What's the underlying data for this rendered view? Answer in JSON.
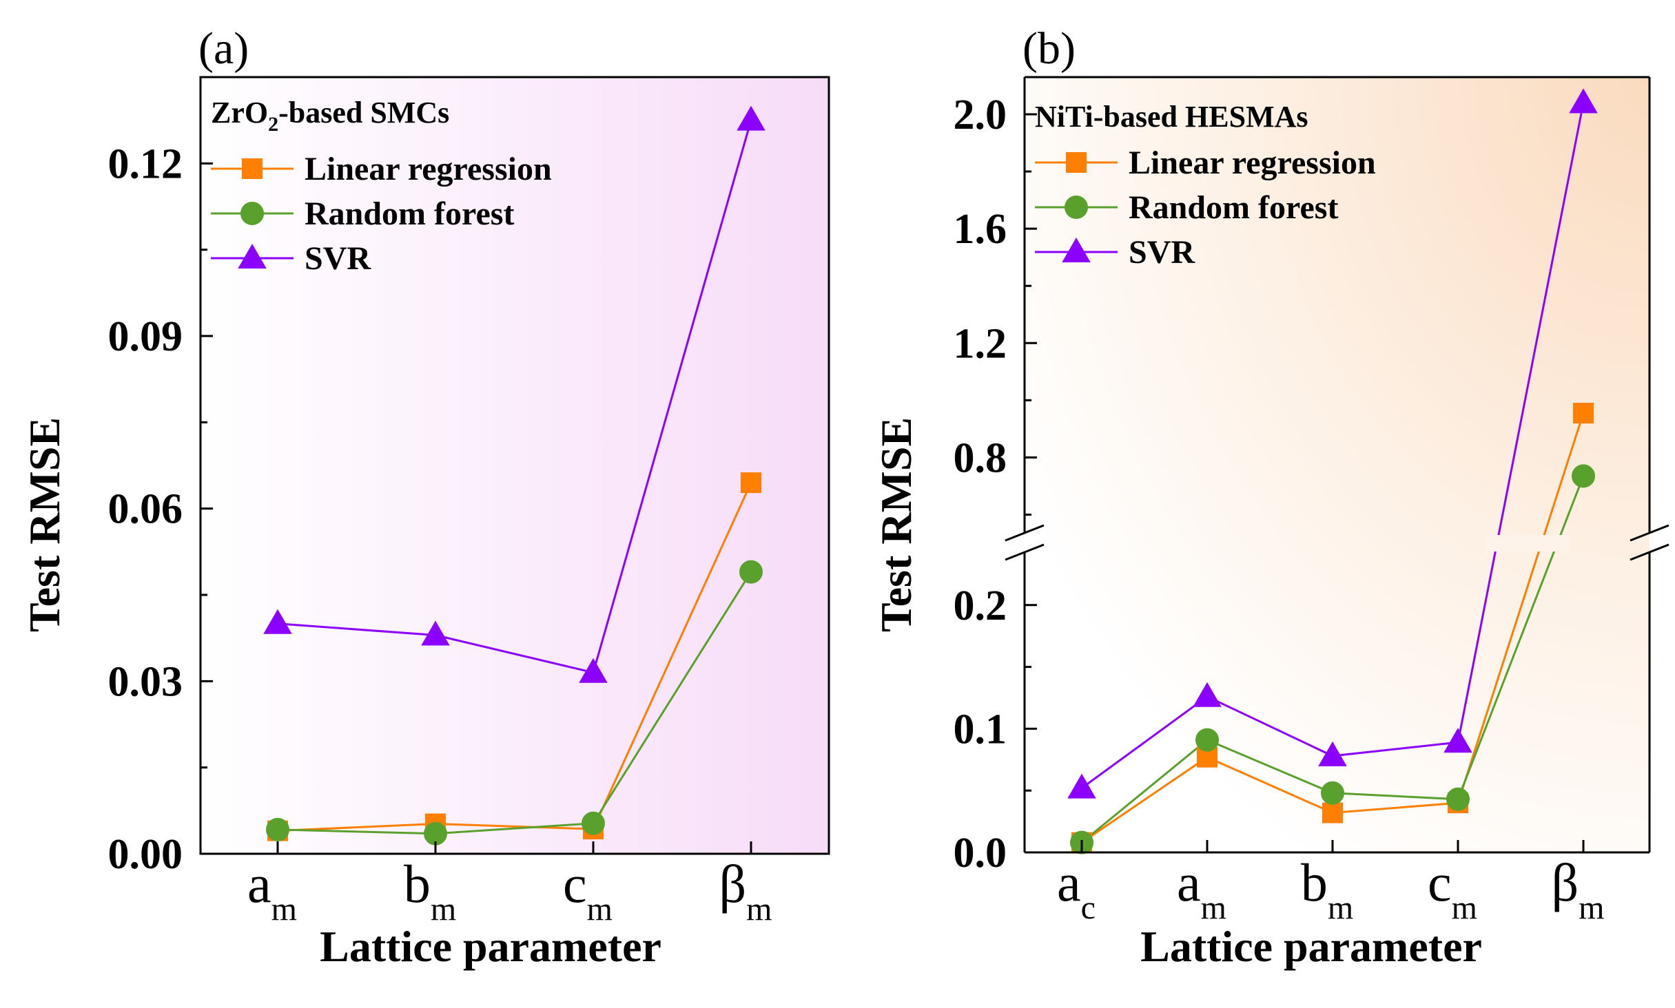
{
  "chart_data": [
    {
      "type": "line",
      "panel_label": "(a)",
      "legend_title": {
        "main": "ZrO",
        "sub": "2",
        "rest": "-based SMCs"
      },
      "xlabel": "Lattice parameter",
      "ylabel": "Test RMSE",
      "ylim": [
        0,
        0.135
      ],
      "y_ticks": [
        "0.00",
        "0.03",
        "0.06",
        "0.09",
        "0.12"
      ],
      "y_tick_values": [
        0,
        0.03,
        0.06,
        0.09,
        0.12
      ],
      "y_minor_ticks": [
        0.015,
        0.045,
        0.075,
        0.105
      ],
      "categories": [
        {
          "base": "a",
          "sub": "m"
        },
        {
          "base": "b",
          "sub": "m"
        },
        {
          "base": "c",
          "sub": "m"
        },
        {
          "base": "β",
          "sub": "m"
        }
      ],
      "background_gradient": [
        "#ffffff",
        "#f7dcf8"
      ],
      "legend_position": "top-left",
      "series": [
        {
          "name": "Linear regression",
          "marker": "square",
          "color": "#ff7f00",
          "values": [
            0.004,
            0.0052,
            0.0043,
            0.0645
          ]
        },
        {
          "name": "Random forest",
          "marker": "circle",
          "color": "#5aa02c",
          "values": [
            0.0042,
            0.0035,
            0.0053,
            0.049
          ]
        },
        {
          "name": "SVR",
          "marker": "triangle",
          "color": "#8b00ff",
          "values": [
            0.04,
            0.038,
            0.0315,
            0.1275
          ]
        }
      ]
    },
    {
      "type": "line",
      "panel_label": "(b)",
      "legend_title": {
        "main": "NiTi-based HESMAs",
        "sub": "",
        "rest": ""
      },
      "xlabel": "Lattice parameter",
      "ylabel": "Test RMSE",
      "axis_break": {
        "lower_range": [
          0,
          0.25
        ],
        "upper_range": [
          0.5,
          2.13
        ]
      },
      "y_ticks_lower": [
        "0.0",
        "0.1",
        "0.2"
      ],
      "y_tick_values_lower": [
        0,
        0.1,
        0.2
      ],
      "y_minor_ticks_lower": [
        0.05,
        0.15
      ],
      "y_ticks_upper": [
        "0.8",
        "1.2",
        "1.6",
        "2.0"
      ],
      "y_tick_values_upper": [
        0.8,
        1.2,
        1.6,
        2.0
      ],
      "y_minor_ticks_upper": [
        0.6,
        1.0,
        1.4,
        1.8
      ],
      "categories": [
        {
          "base": "a",
          "sub": "c"
        },
        {
          "base": "a",
          "sub": "m"
        },
        {
          "base": "b",
          "sub": "m"
        },
        {
          "base": "c",
          "sub": "m"
        },
        {
          "base": "β",
          "sub": "m"
        }
      ],
      "background_gradient": [
        "#ffffff",
        "#fadbbf"
      ],
      "legend_position": "top-left",
      "series": [
        {
          "name": "Linear regression",
          "marker": "square",
          "color": "#ff7f00",
          "values": [
            0.008,
            0.077,
            0.032,
            0.04,
            0.955
          ]
        },
        {
          "name": "Random forest",
          "marker": "circle",
          "color": "#5aa02c",
          "values": [
            0.008,
            0.091,
            0.048,
            0.043,
            0.735
          ]
        },
        {
          "name": "SVR",
          "marker": "triangle",
          "color": "#8b00ff",
          "values": [
            0.052,
            0.126,
            0.078,
            0.089,
            2.04
          ]
        }
      ]
    }
  ]
}
